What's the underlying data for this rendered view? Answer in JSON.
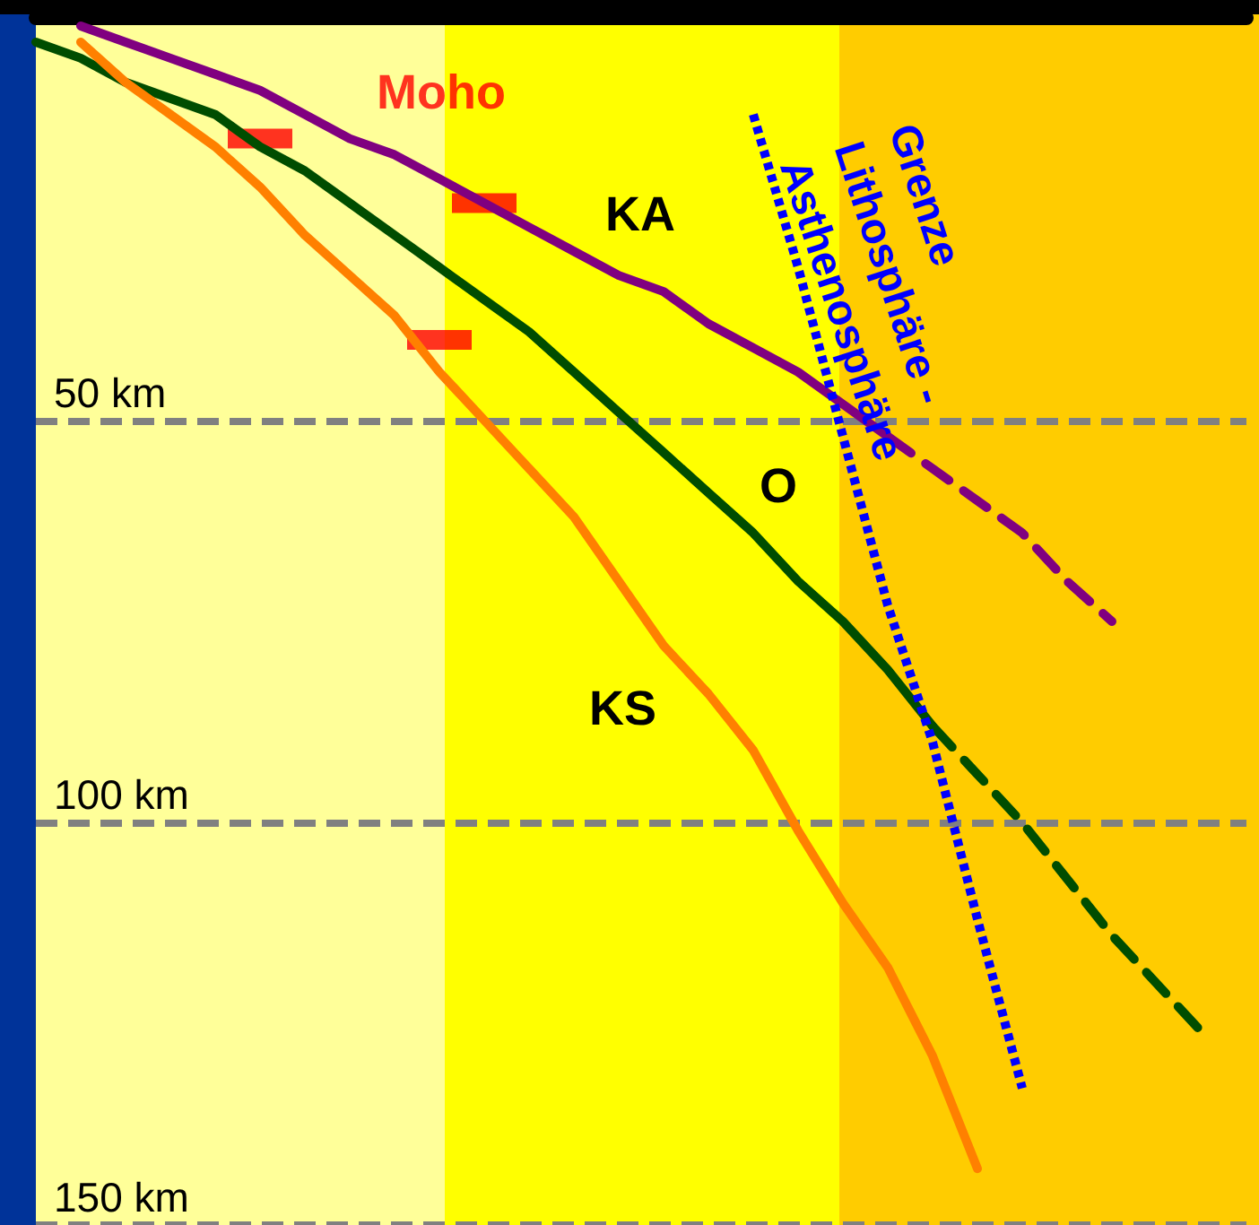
{
  "chart_data": {
    "type": "line",
    "categories": [
      null,
      null,
      null,
      null,
      null,
      null,
      null,
      null,
      null,
      null,
      null,
      null,
      null,
      null,
      null,
      null,
      null,
      null,
      null,
      null,
      null,
      null,
      null,
      null,
      null,
      null,
      null,
      null
    ],
    "series": [
      {
        "name": "KA",
        "color": "#800080",
        "values": [
          null,
          1,
          3,
          5,
          7,
          9,
          12,
          15,
          17,
          20,
          23,
          26,
          29,
          32,
          34,
          38,
          41,
          44,
          48,
          52,
          null,
          null,
          null,
          null,
          null,
          null,
          null,
          null
        ]
      },
      {
        "color": "#800080",
        "line_style": "dashed",
        "values": [
          null,
          null,
          null,
          null,
          null,
          null,
          null,
          null,
          null,
          null,
          null,
          null,
          null,
          null,
          null,
          null,
          null,
          null,
          null,
          52,
          56,
          60,
          64,
          70,
          75,
          null,
          null,
          null
        ]
      },
      {
        "name": "O",
        "color": "#004d00",
        "values": [
          3,
          5,
          8,
          10,
          12,
          16,
          19,
          23,
          27,
          31,
          35,
          39,
          44,
          49,
          54,
          59,
          64,
          70,
          75,
          81,
          88,
          null,
          null,
          null,
          null,
          null,
          null,
          null
        ]
      },
      {
        "color": "#004d00",
        "line_style": "dashed",
        "values": [
          null,
          null,
          null,
          null,
          null,
          null,
          null,
          null,
          null,
          null,
          null,
          null,
          null,
          null,
          null,
          null,
          null,
          null,
          null,
          null,
          88,
          94,
          100,
          107,
          114,
          120,
          126,
          null
        ]
      },
      {
        "name": "KS",
        "color": "#ff8000",
        "values": [
          null,
          3,
          8,
          12,
          16,
          21,
          27,
          32,
          37,
          44,
          50,
          56,
          62,
          70,
          78,
          84,
          91,
          101,
          110,
          118,
          129,
          143,
          null,
          null,
          null,
          null,
          null,
          null
        ]
      },
      {
        "name": "Grenze Lithosphäre - Asthenosphäre",
        "color": "#0000ff",
        "line_style": "dotted",
        "values": [
          null,
          null,
          null,
          null,
          null,
          null,
          null,
          null,
          null,
          null,
          null,
          null,
          null,
          null,
          null,
          null,
          12,
          31,
          52,
          73,
          90,
          112,
          133,
          null,
          null,
          null,
          null,
          null
        ]
      },
      {
        "name": "Moho",
        "type": "scatter",
        "marker": "square",
        "color": "#ff0000",
        "values": [
          null,
          null,
          null,
          null,
          null,
          15,
          null,
          null,
          null,
          40,
          23,
          null,
          null,
          null,
          null,
          null,
          null,
          null,
          null,
          null,
          null,
          null,
          null,
          null,
          null,
          null,
          null,
          null
        ]
      }
    ],
    "ylim": [
      150,
      0
    ],
    "yticks": [
      {
        "value": 50,
        "label": "50 km"
      },
      {
        "value": 100,
        "label": "100 km"
      },
      {
        "value": 150,
        "label": "150 km"
      }
    ],
    "grid": "y",
    "legend": false,
    "marker": "none",
    "line_style": "solid",
    "tick_labels": "y"
  }
}
